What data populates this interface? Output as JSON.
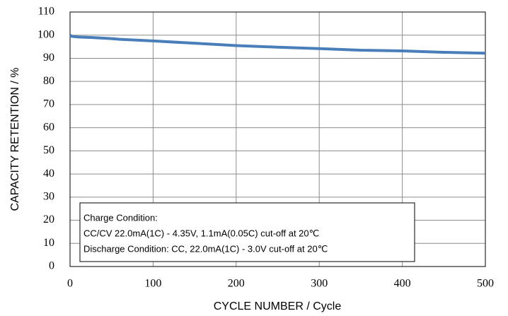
{
  "chart_data": {
    "type": "line",
    "x": [
      0,
      2,
      10,
      25,
      50,
      60,
      100,
      150,
      200,
      250,
      300,
      350,
      400,
      450,
      500
    ],
    "values": [
      100,
      99.5,
      99.2,
      99,
      98.5,
      98.2,
      97.5,
      96.5,
      95.5,
      94.8,
      94.2,
      93.5,
      93.2,
      92.6,
      92.2
    ],
    "color": "#4a7ebb",
    "xlabel": "CYCLE NUMBER / Cycle",
    "ylabel": "CAPACITY RETENTION / %",
    "xlim": [
      0,
      500
    ],
    "xticks": [
      0,
      100,
      200,
      300,
      400,
      500
    ],
    "ylim": [
      0,
      110
    ],
    "yticks": [
      0,
      10,
      20,
      30,
      40,
      50,
      60,
      70,
      80,
      90,
      100,
      110
    ],
    "grid": true,
    "annotation": [
      "Charge Condition:",
      "CC/CV 22.0mA(1C) - 4.35V, 1.1mA(0.05C) cut-off at  20℃",
      "Discharge Condition: CC, 22.0mA(1C) - 3.0V cut-off at 20℃"
    ]
  }
}
